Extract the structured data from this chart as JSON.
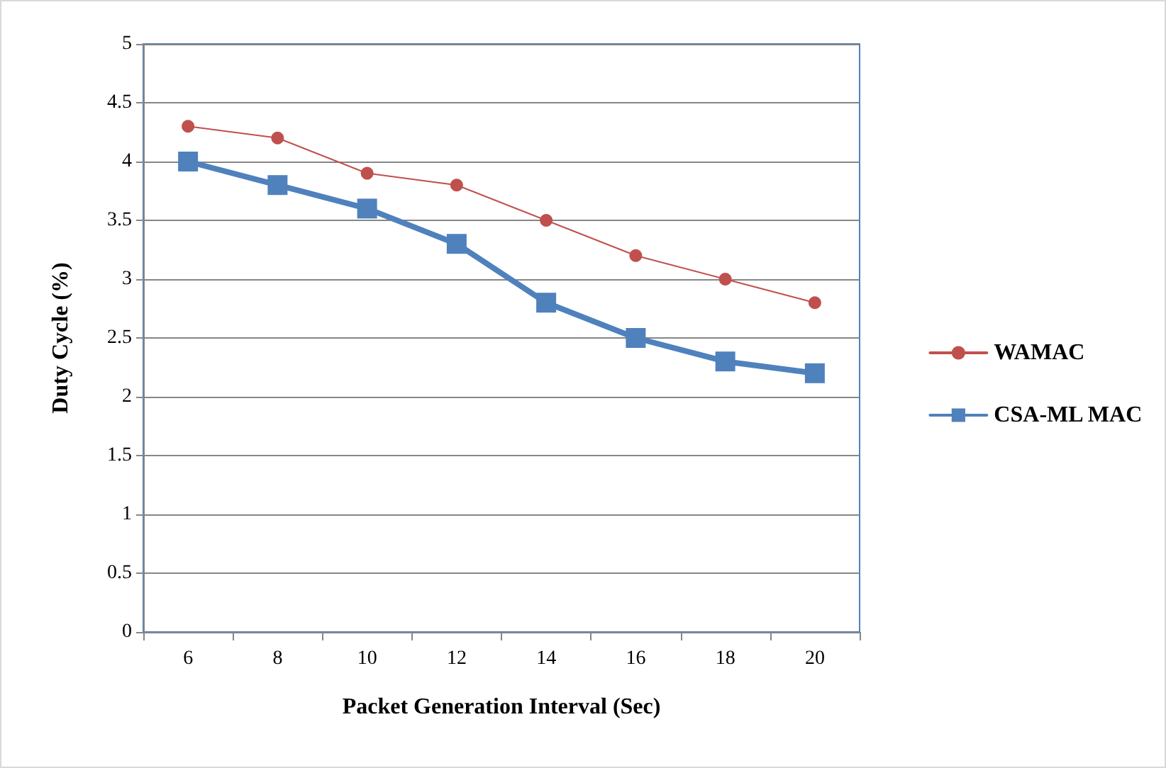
{
  "chart_data": {
    "type": "line",
    "xlabel": "Packet Generation Interval (Sec)",
    "ylabel": "Duty Cycle (%)",
    "categories": [
      "6",
      "8",
      "10",
      "12",
      "14",
      "16",
      "18",
      "20"
    ],
    "series": [
      {
        "name": "WAMAC",
        "color": "#c0504d",
        "marker": "circle",
        "values": [
          4.3,
          4.2,
          3.9,
          3.8,
          3.5,
          3.2,
          3.0,
          2.8
        ]
      },
      {
        "name": "CSA-ML MAC",
        "color": "#4f81bd",
        "marker": "square",
        "values": [
          4.0,
          3.8,
          3.6,
          3.3,
          2.8,
          2.5,
          2.3,
          2.2
        ]
      }
    ],
    "ylim": [
      0,
      5
    ],
    "yticks": [
      0,
      0.5,
      1,
      1.5,
      2,
      2.5,
      3,
      3.5,
      4,
      4.5,
      5
    ],
    "grid": "y",
    "legend": "right",
    "line_style": "solid"
  }
}
